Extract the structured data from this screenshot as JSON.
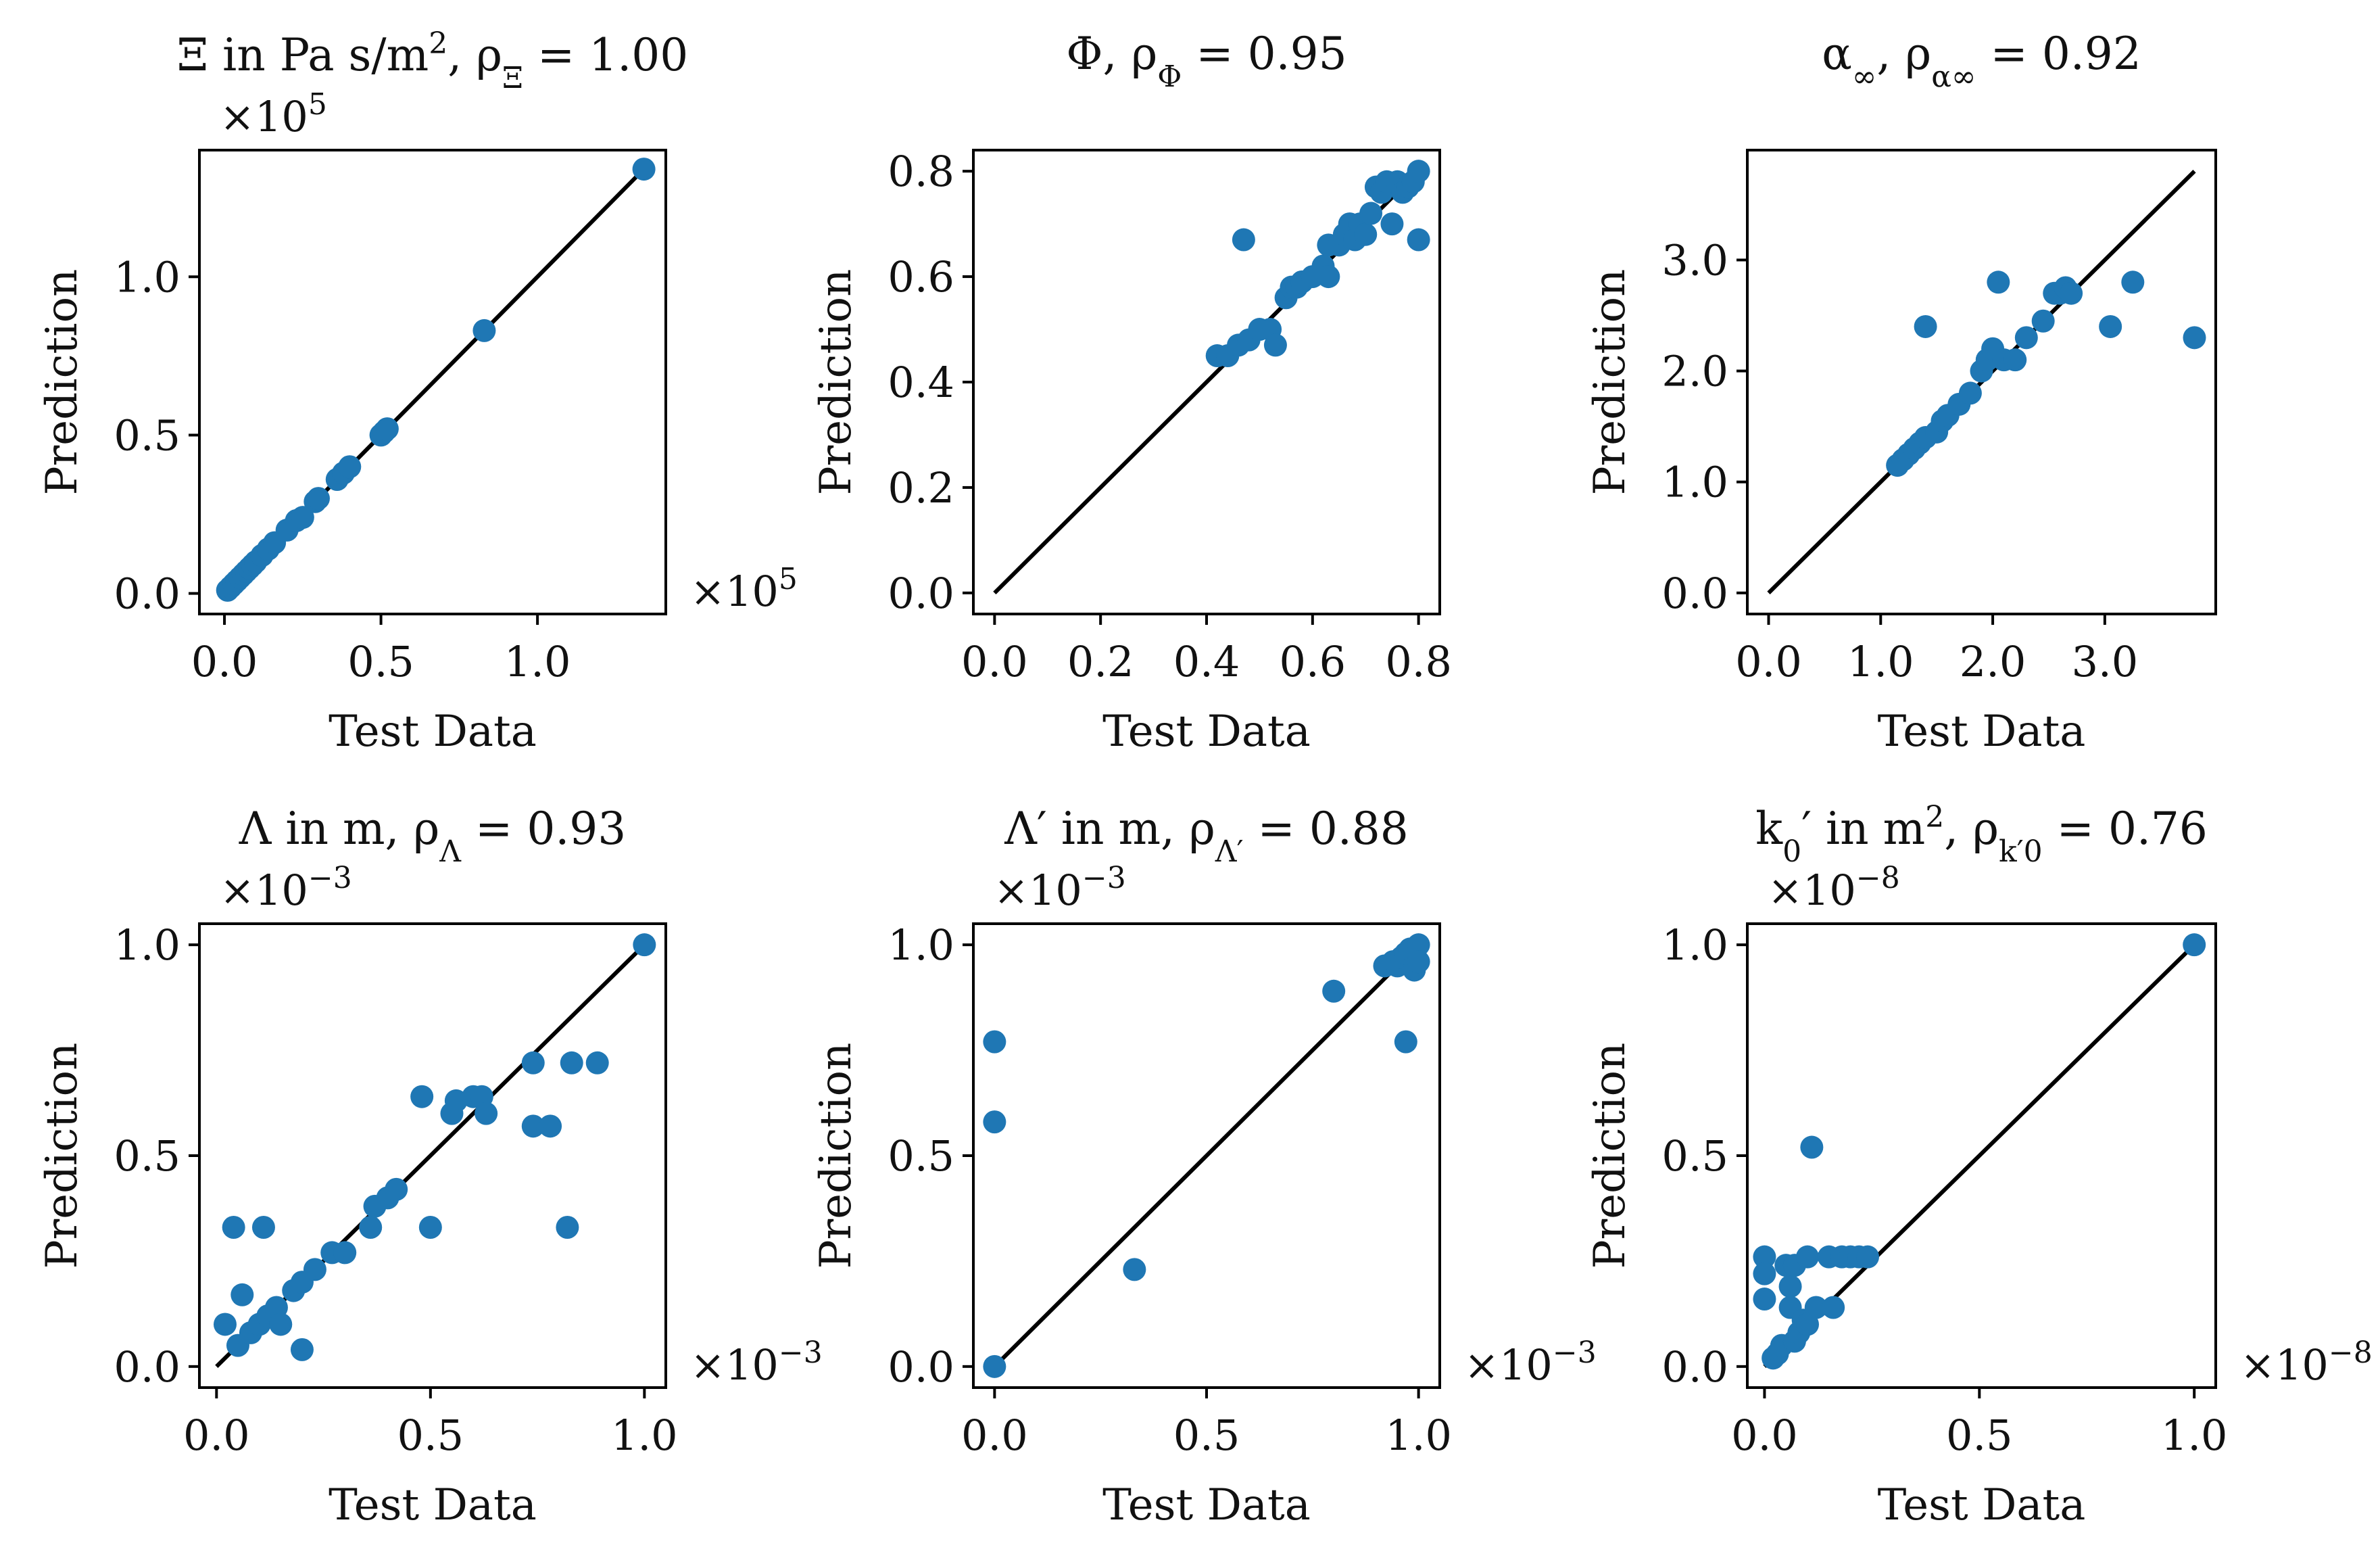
{
  "chart_data": [
    {
      "type": "scatter",
      "title_parts": [
        [
          "Ξ in Pa s/m",
          ""
        ],
        [
          "2",
          "sup"
        ],
        [
          ", ",
          ""
        ],
        [
          "ρ",
          ""
        ],
        [
          "Ξ",
          "sub"
        ],
        [
          " = 1.00",
          ""
        ]
      ],
      "xlabel": "Test Data",
      "ylabel": "Prediction",
      "xlim": [
        -0.08,
        1.41
      ],
      "ylim": [
        -0.065,
        1.4
      ],
      "xticks": [
        "0.0",
        "0.5",
        "1.0"
      ],
      "xtick_values": [
        0,
        0.5,
        1.0
      ],
      "yticks": [
        "0.0",
        "0.5",
        "1.0"
      ],
      "ytick_values": [
        0,
        0.5,
        1.0
      ],
      "x_multiplier": [
        "×10",
        "5"
      ],
      "y_multiplier": [
        "×10",
        "5"
      ],
      "diagonal": [
        0,
        1.34
      ],
      "color": "#1f77b4",
      "points": [
        [
          0.01,
          0.01
        ],
        [
          0.02,
          0.02
        ],
        [
          0.03,
          0.03
        ],
        [
          0.04,
          0.04
        ],
        [
          0.05,
          0.05
        ],
        [
          0.06,
          0.06
        ],
        [
          0.07,
          0.07
        ],
        [
          0.08,
          0.08
        ],
        [
          0.09,
          0.09
        ],
        [
          0.1,
          0.1
        ],
        [
          0.12,
          0.12
        ],
        [
          0.14,
          0.14
        ],
        [
          0.16,
          0.16
        ],
        [
          0.2,
          0.2
        ],
        [
          0.23,
          0.23
        ],
        [
          0.25,
          0.24
        ],
        [
          0.29,
          0.29
        ],
        [
          0.3,
          0.3
        ],
        [
          0.36,
          0.36
        ],
        [
          0.38,
          0.38
        ],
        [
          0.4,
          0.4
        ],
        [
          0.5,
          0.5
        ],
        [
          0.51,
          0.51
        ],
        [
          0.52,
          0.52
        ],
        [
          0.83,
          0.83
        ],
        [
          1.34,
          1.34
        ]
      ]
    },
    {
      "type": "scatter",
      "title_parts": [
        [
          "Φ, ",
          ""
        ],
        [
          "ρ",
          ""
        ],
        [
          "Φ",
          "sub"
        ],
        [
          " = 0.95",
          ""
        ]
      ],
      "xlabel": "Test Data",
      "ylabel": "Prediction",
      "xlim": [
        -0.04,
        0.84
      ],
      "ylim": [
        -0.04,
        0.84
      ],
      "xticks": [
        "0.0",
        "0.2",
        "0.4",
        "0.6",
        "0.8"
      ],
      "xtick_values": [
        0,
        0.2,
        0.4,
        0.6,
        0.8
      ],
      "yticks": [
        "0.0",
        "0.2",
        "0.4",
        "0.6",
        "0.8"
      ],
      "ytick_values": [
        0,
        0.2,
        0.4,
        0.6,
        0.8
      ],
      "diagonal": [
        0,
        0.8
      ],
      "color": "#1f77b4",
      "points": [
        [
          0.42,
          0.45
        ],
        [
          0.44,
          0.45
        ],
        [
          0.46,
          0.47
        ],
        [
          0.47,
          0.67
        ],
        [
          0.48,
          0.48
        ],
        [
          0.5,
          0.5
        ],
        [
          0.52,
          0.5
        ],
        [
          0.53,
          0.47
        ],
        [
          0.55,
          0.56
        ],
        [
          0.56,
          0.58
        ],
        [
          0.57,
          0.58
        ],
        [
          0.58,
          0.59
        ],
        [
          0.6,
          0.6
        ],
        [
          0.62,
          0.62
        ],
        [
          0.63,
          0.6
        ],
        [
          0.63,
          0.66
        ],
        [
          0.65,
          0.66
        ],
        [
          0.66,
          0.68
        ],
        [
          0.67,
          0.7
        ],
        [
          0.68,
          0.67
        ],
        [
          0.69,
          0.7
        ],
        [
          0.7,
          0.68
        ],
        [
          0.71,
          0.72
        ],
        [
          0.72,
          0.77
        ],
        [
          0.73,
          0.76
        ],
        [
          0.74,
          0.78
        ],
        [
          0.75,
          0.7
        ],
        [
          0.76,
          0.78
        ],
        [
          0.77,
          0.76
        ],
        [
          0.78,
          0.77
        ],
        [
          0.79,
          0.78
        ],
        [
          0.8,
          0.8
        ],
        [
          0.8,
          0.67
        ]
      ]
    },
    {
      "type": "scatter",
      "title_parts": [
        [
          "α",
          ""
        ],
        [
          "∞",
          "sub"
        ],
        [
          ", ",
          ""
        ],
        [
          "ρ",
          ""
        ],
        [
          "α∞",
          "sub"
        ],
        [
          " = 0.92",
          ""
        ]
      ],
      "xlabel": "Test Data",
      "ylabel": "Prediction",
      "xlim": [
        -0.19,
        3.99
      ],
      "ylim": [
        -0.19,
        3.99
      ],
      "xticks": [
        "0.0",
        "1.0",
        "2.0",
        "3.0"
      ],
      "xtick_values": [
        0,
        1,
        2,
        3
      ],
      "yticks": [
        "0.0",
        "1.0",
        "2.0",
        "3.0"
      ],
      "ytick_values": [
        0,
        1,
        2,
        3
      ],
      "diagonal": [
        0,
        3.8
      ],
      "color": "#1f77b4",
      "points": [
        [
          1.15,
          1.15
        ],
        [
          1.2,
          1.2
        ],
        [
          1.25,
          1.25
        ],
        [
          1.3,
          1.3
        ],
        [
          1.35,
          1.35
        ],
        [
          1.4,
          2.4
        ],
        [
          1.4,
          1.4
        ],
        [
          1.5,
          1.45
        ],
        [
          1.55,
          1.55
        ],
        [
          1.6,
          1.6
        ],
        [
          1.7,
          1.7
        ],
        [
          1.8,
          1.8
        ],
        [
          1.9,
          2.0
        ],
        [
          1.95,
          2.1
        ],
        [
          2.0,
          2.2
        ],
        [
          2.05,
          2.8
        ],
        [
          2.1,
          2.1
        ],
        [
          2.2,
          2.1
        ],
        [
          2.3,
          2.3
        ],
        [
          2.45,
          2.45
        ],
        [
          2.55,
          2.7
        ],
        [
          2.6,
          2.7
        ],
        [
          2.65,
          2.75
        ],
        [
          2.7,
          2.7
        ],
        [
          3.05,
          2.4
        ],
        [
          3.25,
          2.8
        ],
        [
          3.8,
          2.3
        ]
      ]
    },
    {
      "type": "scatter",
      "title_parts": [
        [
          "Λ in m, ",
          ""
        ],
        [
          "ρ",
          ""
        ],
        [
          "Λ",
          "sub"
        ],
        [
          " = 0.93",
          ""
        ]
      ],
      "xlabel": "Test Data",
      "ylabel": "Prediction",
      "xlim": [
        -0.04,
        1.05
      ],
      "ylim": [
        -0.05,
        1.05
      ],
      "xticks": [
        "0.0",
        "0.5",
        "1.0"
      ],
      "xtick_values": [
        0,
        0.5,
        1.0
      ],
      "yticks": [
        "0.0",
        "0.5",
        "1.0"
      ],
      "ytick_values": [
        0,
        0.5,
        1.0
      ],
      "x_multiplier": [
        "×10",
        "−3"
      ],
      "y_multiplier": [
        "×10",
        "−3"
      ],
      "diagonal": [
        0,
        1.0
      ],
      "color": "#1f77b4",
      "points": [
        [
          0.02,
          0.1
        ],
        [
          0.04,
          0.33
        ],
        [
          0.05,
          0.05
        ],
        [
          0.06,
          0.17
        ],
        [
          0.08,
          0.08
        ],
        [
          0.1,
          0.1
        ],
        [
          0.11,
          0.33
        ],
        [
          0.12,
          0.12
        ],
        [
          0.14,
          0.14
        ],
        [
          0.15,
          0.1
        ],
        [
          0.18,
          0.18
        ],
        [
          0.2,
          0.04
        ],
        [
          0.2,
          0.2
        ],
        [
          0.23,
          0.23
        ],
        [
          0.27,
          0.27
        ],
        [
          0.3,
          0.27
        ],
        [
          0.36,
          0.33
        ],
        [
          0.37,
          0.38
        ],
        [
          0.4,
          0.4
        ],
        [
          0.42,
          0.42
        ],
        [
          0.48,
          0.64
        ],
        [
          0.5,
          0.33
        ],
        [
          0.55,
          0.6
        ],
        [
          0.56,
          0.63
        ],
        [
          0.6,
          0.64
        ],
        [
          0.62,
          0.64
        ],
        [
          0.63,
          0.6
        ],
        [
          0.74,
          0.72
        ],
        [
          0.74,
          0.57
        ],
        [
          0.78,
          0.57
        ],
        [
          0.82,
          0.33
        ],
        [
          0.83,
          0.72
        ],
        [
          0.89,
          0.72
        ],
        [
          1.0,
          1.0
        ]
      ]
    },
    {
      "type": "scatter",
      "title_parts": [
        [
          "Λ′ in m, ",
          ""
        ],
        [
          "ρ",
          ""
        ],
        [
          "Λ′",
          "sub"
        ],
        [
          " = 0.88",
          ""
        ]
      ],
      "xlabel": "Test Data",
      "ylabel": "Prediction",
      "xlim": [
        -0.05,
        1.05
      ],
      "ylim": [
        -0.05,
        1.05
      ],
      "xticks": [
        "0.0",
        "0.5",
        "1.0"
      ],
      "xtick_values": [
        0,
        0.5,
        1.0
      ],
      "yticks": [
        "0.0",
        "0.5",
        "1.0"
      ],
      "ytick_values": [
        0,
        0.5,
        1.0
      ],
      "x_multiplier": [
        "×10",
        "−3"
      ],
      "y_multiplier": [
        "×10",
        "−3"
      ],
      "diagonal": [
        0,
        1.0
      ],
      "color": "#1f77b4",
      "points": [
        [
          0.0,
          0.0
        ],
        [
          0.0,
          0.58
        ],
        [
          0.0,
          0.77
        ],
        [
          0.33,
          0.23
        ],
        [
          0.8,
          0.89
        ],
        [
          0.92,
          0.95
        ],
        [
          0.94,
          0.96
        ],
        [
          0.95,
          0.95
        ],
        [
          0.96,
          0.97
        ],
        [
          0.97,
          0.98
        ],
        [
          0.97,
          0.77
        ],
        [
          0.98,
          0.99
        ],
        [
          0.99,
          0.94
        ],
        [
          1.0,
          1.0
        ],
        [
          1.0,
          0.96
        ]
      ]
    },
    {
      "type": "scatter",
      "title_parts": [
        [
          "k",
          ""
        ],
        [
          "0",
          "sub"
        ],
        [
          "′ in m",
          ""
        ],
        [
          "2",
          "sup"
        ],
        [
          ", ",
          ""
        ],
        [
          "ρ",
          ""
        ],
        [
          "k′0",
          "sub"
        ],
        [
          " = 0.76",
          ""
        ]
      ],
      "xlabel": "Test Data",
      "ylabel": "Prediction",
      "xlim": [
        -0.04,
        1.05
      ],
      "ylim": [
        -0.05,
        1.05
      ],
      "xticks": [
        "0.0",
        "0.5",
        "1.0"
      ],
      "xtick_values": [
        0,
        0.5,
        1.0
      ],
      "yticks": [
        "0.0",
        "0.5",
        "1.0"
      ],
      "ytick_values": [
        0,
        0.5,
        1.0
      ],
      "x_multiplier": [
        "×10",
        "−8"
      ],
      "y_multiplier": [
        "×10",
        "−8"
      ],
      "diagonal": [
        0,
        1.0
      ],
      "color": "#1f77b4",
      "points": [
        [
          0.0,
          0.26
        ],
        [
          0.0,
          0.22
        ],
        [
          0.0,
          0.16
        ],
        [
          0.02,
          0.02
        ],
        [
          0.03,
          0.03
        ],
        [
          0.04,
          0.05
        ],
        [
          0.05,
          0.24
        ],
        [
          0.06,
          0.19
        ],
        [
          0.06,
          0.14
        ],
        [
          0.07,
          0.06
        ],
        [
          0.07,
          0.24
        ],
        [
          0.08,
          0.08
        ],
        [
          0.09,
          0.11
        ],
        [
          0.1,
          0.1
        ],
        [
          0.1,
          0.26
        ],
        [
          0.11,
          0.52
        ],
        [
          0.12,
          0.14
        ],
        [
          0.15,
          0.26
        ],
        [
          0.16,
          0.14
        ],
        [
          0.18,
          0.26
        ],
        [
          0.2,
          0.26
        ],
        [
          0.22,
          0.26
        ],
        [
          0.24,
          0.26
        ],
        [
          1.0,
          1.0
        ]
      ]
    }
  ]
}
